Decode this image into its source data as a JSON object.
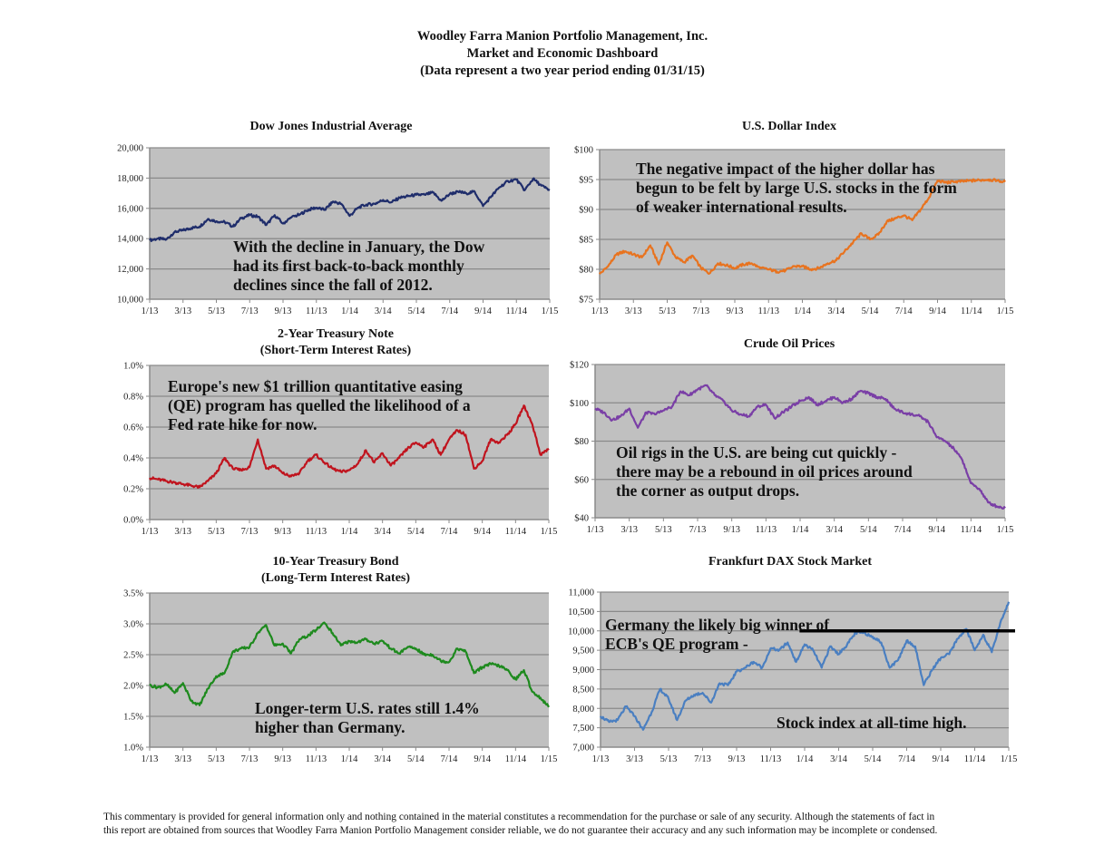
{
  "header": {
    "line1": "Woodley Farra Manion Portfolio Management, Inc.",
    "line2": "Market and Economic Dashboard",
    "line3": "(Data represent a two year period ending 01/31/15)"
  },
  "footer": {
    "line1": "This commentary is provided for general information only and nothing contained in the material constitutes a recommendation for the purchase or sale of any security. Although the statements of fact in",
    "line2": "this report are obtained from sources that Woodley Farra Manion Portfolio Management consider reliable, we do not guarantee their accuracy and any such information may be incomplete or condensed."
  },
  "chart_data": [
    {
      "id": "dow",
      "type": "line",
      "title": "Dow Jones Industrial Average",
      "subtitle": "",
      "color": "#1f2d6b",
      "x_ticks": [
        "1/13",
        "3/13",
        "5/13",
        "7/13",
        "9/13",
        "11/13",
        "1/14",
        "3/14",
        "5/14",
        "7/14",
        "9/14",
        "11/14",
        "1/15"
      ],
      "y_ticks": [
        "10,000",
        "12,000",
        "14,000",
        "16,000",
        "18,000",
        "20,000"
      ],
      "ylim": [
        10000,
        20000
      ],
      "grid": true,
      "x_months": [
        0,
        0.5,
        1,
        1.5,
        2,
        2.5,
        3,
        3.5,
        4,
        4.5,
        5,
        5.5,
        6,
        6.5,
        7,
        7.5,
        8,
        8.5,
        9,
        9.5,
        10,
        10.5,
        11,
        11.5,
        12,
        12.5,
        13,
        13.5,
        14,
        14.5,
        15,
        15.5,
        16,
        16.5,
        17,
        17.5,
        18,
        18.5,
        19,
        19.5,
        20,
        20.5,
        21,
        21.5,
        22,
        22.5,
        23,
        23.5,
        24
      ],
      "values": [
        13900,
        14000,
        13950,
        14450,
        14550,
        14700,
        14800,
        15300,
        15150,
        15100,
        14800,
        15350,
        15550,
        15450,
        14900,
        15550,
        15000,
        15400,
        15600,
        15900,
        16050,
        15900,
        16450,
        16300,
        15500,
        16050,
        16250,
        16300,
        16550,
        16400,
        16700,
        16800,
        16900,
        16900,
        17050,
        16500,
        16950,
        17100,
        17000,
        17100,
        16150,
        16800,
        17400,
        17800,
        17900,
        17200,
        17950,
        17500,
        17200
      ],
      "annotation": [
        "With the decline in January, the Dow",
        "had its first back-to-back monthly",
        "declines since the fall of 2012."
      ]
    },
    {
      "id": "usd",
      "type": "line",
      "title": "U.S. Dollar Index",
      "subtitle": "",
      "color": "#e8731f",
      "x_ticks": [
        "1/13",
        "3/13",
        "5/13",
        "7/13",
        "9/13",
        "11/13",
        "1/14",
        "3/14",
        "5/14",
        "7/14",
        "9/14",
        "11/14",
        "1/15"
      ],
      "y_ticks": [
        "$75",
        "$80",
        "$85",
        "$90",
        "$95",
        "$100"
      ],
      "ylim": [
        75,
        100
      ],
      "grid": true,
      "x_months": [
        0,
        0.5,
        1,
        1.5,
        2,
        2.5,
        3,
        3.5,
        4,
        4.5,
        5,
        5.5,
        6,
        6.5,
        7,
        7.5,
        8,
        8.5,
        9,
        9.5,
        10,
        10.5,
        11,
        11.5,
        12,
        12.5,
        13,
        13.5,
        14,
        14.5,
        15,
        15.5,
        16,
        16.5,
        17,
        17.5,
        18,
        18.5,
        19,
        19.5,
        20,
        20.5,
        21,
        21.5,
        22,
        22.5,
        23,
        23.5,
        24
      ],
      "values": [
        79.2,
        80.5,
        82.5,
        83.0,
        82.5,
        82.0,
        84.0,
        80.8,
        84.5,
        82.0,
        81.2,
        82.3,
        80.2,
        79.3,
        81.0,
        80.7,
        80.2,
        80.8,
        81.0,
        80.2,
        80.0,
        79.6,
        79.8,
        80.5,
        80.5,
        80.0,
        80.2,
        81.0,
        81.5,
        83.0,
        84.5,
        86.0,
        85.0,
        85.8,
        88.0,
        88.5,
        89.0,
        88.2,
        90.0,
        92.0,
        94.8,
        94.5,
        94.6,
        94.7,
        94.8,
        94.9,
        95.0,
        94.8,
        94.6
      ],
      "annotation": [
        "The negative impact of the higher dollar has",
        "begun to be felt by large U.S. stocks in the form",
        "of weaker international results."
      ]
    },
    {
      "id": "t2",
      "type": "line",
      "title": "2-Year Treasury Note",
      "subtitle": "(Short-Term Interest Rates)",
      "color": "#c0141e",
      "x_ticks": [
        "1/13",
        "3/13",
        "5/13",
        "7/13",
        "9/13",
        "11/13",
        "1/14",
        "3/14",
        "5/14",
        "7/14",
        "9/14",
        "11/14",
        "1/15"
      ],
      "y_ticks": [
        "0.0%",
        "0.2%",
        "0.4%",
        "0.6%",
        "0.8%",
        "1.0%"
      ],
      "ylim": [
        0,
        1.0
      ],
      "grid": true,
      "x_months": [
        0,
        0.5,
        1,
        1.5,
        2,
        2.5,
        3,
        3.5,
        4,
        4.5,
        5,
        5.5,
        6,
        6.5,
        7,
        7.5,
        8,
        8.5,
        9,
        9.5,
        10,
        10.5,
        11,
        11.5,
        12,
        12.5,
        13,
        13.5,
        14,
        14.5,
        15,
        15.5,
        16,
        16.5,
        17,
        17.5,
        18,
        18.5,
        19,
        19.5,
        20,
        20.5,
        21,
        21.5,
        22,
        22.5,
        23,
        23.5,
        24
      ],
      "values": [
        0.27,
        0.26,
        0.25,
        0.24,
        0.23,
        0.22,
        0.21,
        0.25,
        0.3,
        0.4,
        0.33,
        0.32,
        0.34,
        0.52,
        0.33,
        0.35,
        0.3,
        0.28,
        0.3,
        0.38,
        0.42,
        0.37,
        0.33,
        0.31,
        0.32,
        0.36,
        0.45,
        0.37,
        0.43,
        0.35,
        0.4,
        0.46,
        0.5,
        0.47,
        0.52,
        0.42,
        0.52,
        0.58,
        0.55,
        0.33,
        0.38,
        0.52,
        0.5,
        0.55,
        0.62,
        0.74,
        0.62,
        0.42,
        0.46
      ],
      "annotation": [
        "Europe's new $1 trillion quantitative easing",
        "(QE) program has quelled the likelihood of a",
        "Fed rate hike for now."
      ]
    },
    {
      "id": "oil",
      "type": "line",
      "title": "Crude Oil Prices",
      "subtitle": "",
      "color": "#7a3fa6",
      "x_ticks": [
        "1/13",
        "3/13",
        "5/13",
        "7/13",
        "9/13",
        "11/13",
        "1/14",
        "3/14",
        "5/14",
        "7/14",
        "9/14",
        "11/14",
        "1/15"
      ],
      "y_ticks": [
        "$40",
        "$60",
        "$80",
        "$100",
        "$120"
      ],
      "ylim": [
        40,
        120
      ],
      "grid": true,
      "x_months": [
        0,
        0.5,
        1,
        1.5,
        2,
        2.5,
        3,
        3.5,
        4,
        4.5,
        5,
        5.5,
        6,
        6.5,
        7,
        7.5,
        8,
        8.5,
        9,
        9.5,
        10,
        10.5,
        11,
        11.5,
        12,
        12.5,
        13,
        13.5,
        14,
        14.5,
        15,
        15.5,
        16,
        16.5,
        17,
        17.5,
        18,
        18.5,
        19,
        19.5,
        20,
        20.5,
        21,
        21.5,
        22,
        22.5,
        23,
        23.5,
        24
      ],
      "values": [
        97,
        95,
        91,
        93,
        97,
        87,
        95,
        94,
        96,
        98,
        106,
        104,
        107,
        109,
        104,
        101,
        96,
        94,
        93,
        98,
        99,
        92,
        95,
        98,
        101,
        103,
        99,
        101,
        103,
        100,
        102,
        106,
        105,
        103,
        102,
        97,
        95,
        94,
        93,
        90,
        82,
        80,
        76,
        70,
        58,
        55,
        48,
        46,
        45
      ],
      "annotation": [
        "Oil rigs in the U.S. are being cut quickly -",
        "there may be a rebound in oil prices around",
        "the corner as output drops."
      ]
    },
    {
      "id": "t10",
      "type": "line",
      "title": "10-Year Treasury Bond",
      "subtitle": "(Long-Term Interest Rates)",
      "color": "#1e8a1e",
      "x_ticks": [
        "1/13",
        "3/13",
        "5/13",
        "7/13",
        "9/13",
        "11/13",
        "1/14",
        "3/14",
        "5/14",
        "7/14",
        "9/14",
        "11/14",
        "1/15"
      ],
      "y_ticks": [
        "1.0%",
        "1.5%",
        "2.0%",
        "2.5%",
        "3.0%",
        "3.5%"
      ],
      "ylim": [
        1.0,
        3.5
      ],
      "grid": true,
      "x_months": [
        0,
        0.5,
        1,
        1.5,
        2,
        2.5,
        3,
        3.5,
        4,
        4.5,
        5,
        5.5,
        6,
        6.5,
        7,
        7.5,
        8,
        8.5,
        9,
        9.5,
        10,
        10.5,
        11,
        11.5,
        12,
        12.5,
        13,
        13.5,
        14,
        14.5,
        15,
        15.5,
        16,
        16.5,
        17,
        17.5,
        18,
        18.5,
        19,
        19.5,
        20,
        20.5,
        21,
        21.5,
        22,
        22.5,
        23,
        23.5,
        24
      ],
      "values": [
        2.0,
        1.97,
        2.02,
        1.88,
        2.04,
        1.75,
        1.68,
        1.95,
        2.15,
        2.2,
        2.55,
        2.6,
        2.62,
        2.85,
        2.98,
        2.65,
        2.68,
        2.52,
        2.75,
        2.8,
        2.9,
        3.02,
        2.85,
        2.65,
        2.72,
        2.7,
        2.75,
        2.68,
        2.72,
        2.6,
        2.52,
        2.62,
        2.6,
        2.5,
        2.5,
        2.4,
        2.38,
        2.6,
        2.55,
        2.2,
        2.3,
        2.35,
        2.32,
        2.25,
        2.1,
        2.25,
        1.9,
        1.8,
        1.65
      ],
      "annotation": [
        "Longer-term U.S. rates still 1.4%",
        "higher than Germany."
      ]
    },
    {
      "id": "dax",
      "type": "line",
      "title": "Frankfurt DAX Stock Market",
      "subtitle": "",
      "color": "#4a7fc1",
      "x_ticks": [
        "1/13",
        "3/13",
        "5/13",
        "7/13",
        "9/13",
        "11/13",
        "1/14",
        "3/14",
        "5/14",
        "7/14",
        "9/14",
        "11/14",
        "1/15"
      ],
      "y_ticks": [
        "7,000",
        "7,500",
        "8,000",
        "8,500",
        "9,000",
        "9,500",
        "10,000",
        "10,500",
        "11,000"
      ],
      "ylim": [
        7000,
        11000
      ],
      "grid": true,
      "x_months": [
        0,
        0.5,
        1,
        1.5,
        2,
        2.5,
        3,
        3.5,
        4,
        4.5,
        5,
        5.5,
        6,
        6.5,
        7,
        7.5,
        8,
        8.5,
        9,
        9.5,
        10,
        10.5,
        11,
        11.5,
        12,
        12.5,
        13,
        13.5,
        14,
        14.5,
        15,
        15.5,
        16,
        16.5,
        17,
        17.5,
        18,
        18.5,
        19,
        19.5,
        20,
        20.5,
        21,
        21.5,
        22,
        22.5,
        23,
        23.5,
        24
      ],
      "values": [
        7800,
        7650,
        7700,
        8050,
        7800,
        7450,
        7900,
        8500,
        8250,
        7700,
        8200,
        8350,
        8400,
        8150,
        8650,
        8600,
        8950,
        9050,
        9200,
        9050,
        9550,
        9500,
        9700,
        9200,
        9650,
        9500,
        9050,
        9600,
        9400,
        9650,
        9950,
        9950,
        9850,
        9700,
        9050,
        9250,
        9750,
        9600,
        8600,
        9000,
        9300,
        9400,
        9800,
        10050,
        9500,
        9900,
        9450,
        10200,
        10750
      ],
      "reference_line": 10000,
      "annotation": [
        "Germany the likely big winner of",
        "ECB's QE program -"
      ],
      "annotation2": "Stock index at all-time high."
    }
  ]
}
